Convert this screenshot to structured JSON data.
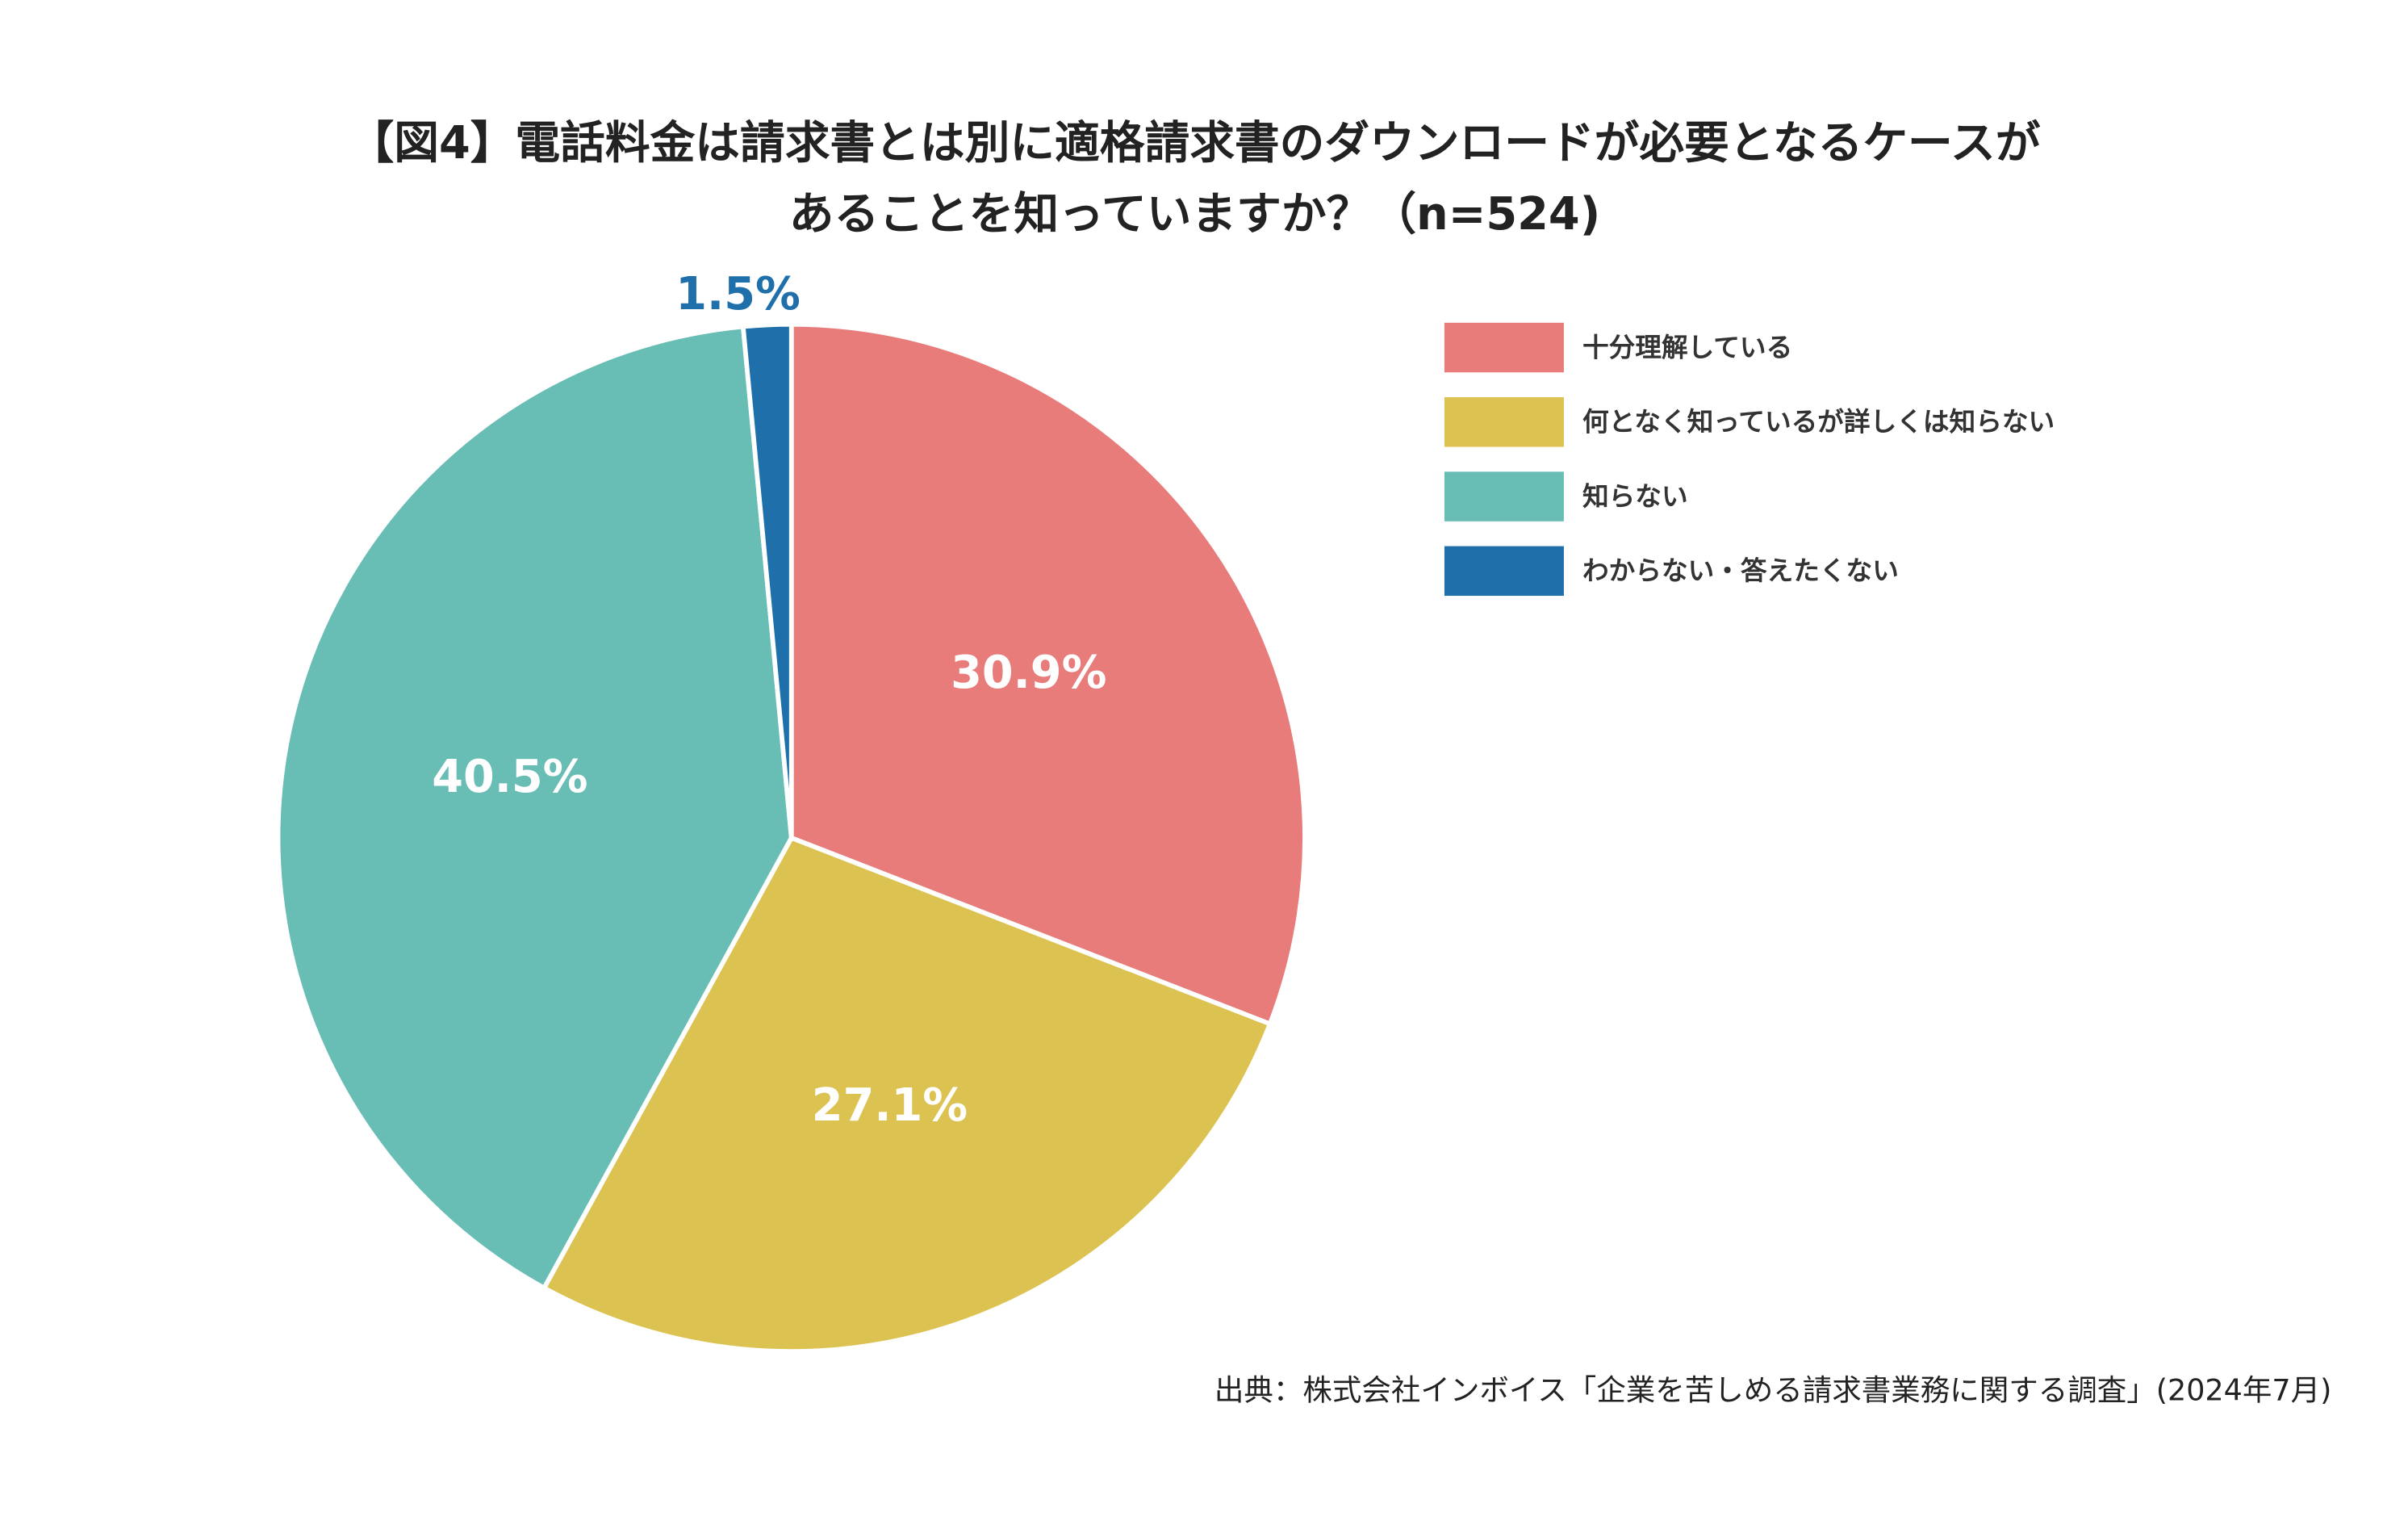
{
  "chart_data": {
    "type": "pie",
    "title": [
      "【図4】電話料金は請求書とは別に適格請求書のダウンロードが必要となるケースが",
      "あることを知っていますか？（n=524)"
    ],
    "categories": [
      "十分理解している",
      "何となく知っているが詳しくは知らない",
      "知らない",
      "わからない・答えたくない"
    ],
    "values": [
      30.9,
      27.1,
      40.5,
      1.5
    ],
    "value_labels": [
      "30.9%",
      "27.1%",
      "40.5%",
      "1.5%"
    ],
    "colors": [
      "#e87c7b",
      "#dcc250",
      "#68bdb4",
      "#1f6fab"
    ],
    "legend": "top-right",
    "source": "出典：株式会社インボイス「企業を苦しめる請求書業務に関する調査」(2024年7月)"
  }
}
